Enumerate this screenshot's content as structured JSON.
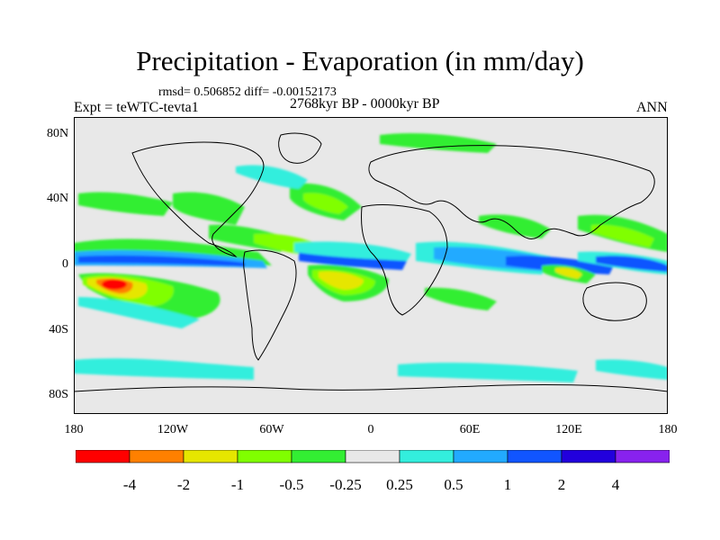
{
  "title": "Precipitation - Evaporation (in mm/day)",
  "stats": "rmsd= 0.506852 diff= -0.00152173",
  "period": "2768kyr BP - 0000kyr BP",
  "experiment": "Expt = teWTC-tevta1",
  "season": "ANN",
  "map": {
    "lat_ticks": [
      "80N",
      "40N",
      "0",
      "40S",
      "80S"
    ],
    "lon_ticks": [
      "180",
      "120W",
      "60W",
      "0",
      "60E",
      "120E",
      "180"
    ],
    "land_color": "#e8e8e8",
    "coast_color": "#000000"
  },
  "legend": {
    "labels": [
      "-4",
      "-2",
      "-1",
      "-0.5",
      "-0.25",
      "0.25",
      "0.5",
      "1",
      "2",
      "4"
    ],
    "colors": [
      "#ff0000",
      "#ff8000",
      "#e6e600",
      "#80ff00",
      "#33ee33",
      "#e8e8e8",
      "#33eedd",
      "#22aaff",
      "#1155ff",
      "#2200dd",
      "#8822ee"
    ]
  }
}
